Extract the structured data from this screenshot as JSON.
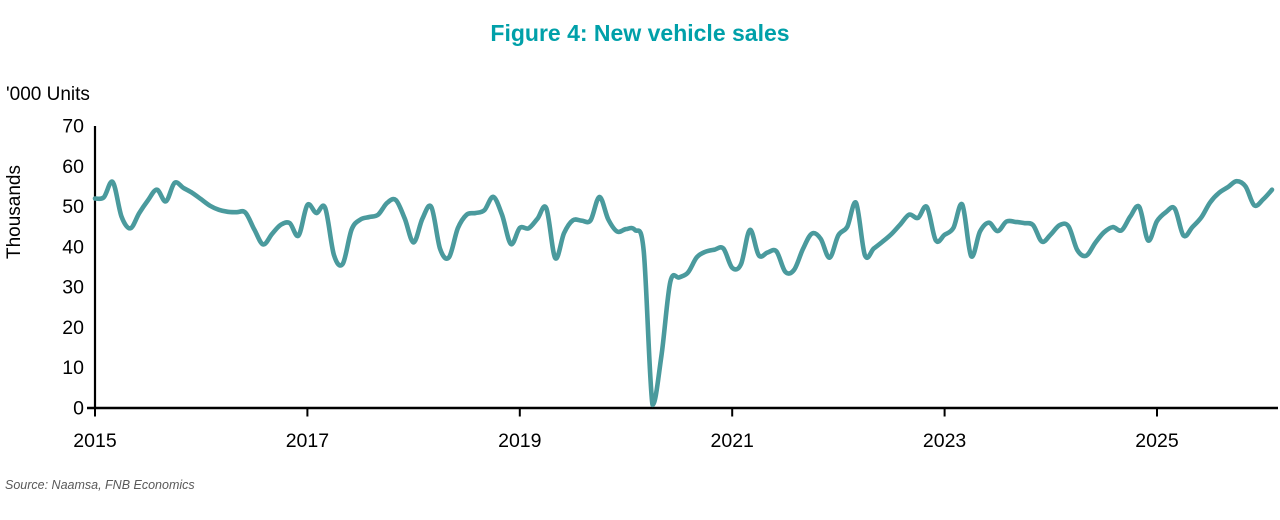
{
  "title": "Figure 4: New vehicle sales",
  "units_label": "'000 Units",
  "y_axis_label": "Thousands",
  "source": "Source: Naamsa, FNB Economics",
  "colors": {
    "title": "#00A0A9",
    "line": "#4A9A9D",
    "axis": "#000000",
    "source_text": "#595959"
  },
  "chart_data": {
    "type": "line",
    "title": "Figure 4: New vehicle sales",
    "ylabel": "Thousands",
    "units": "'000 Units",
    "frequency": "monthly",
    "start_year": 2015,
    "start_month": 1,
    "x_tick_labels": [
      "2015",
      "2017",
      "2019",
      "2021",
      "2023",
      "2025"
    ],
    "x_tick_years": [
      2015,
      2017,
      2019,
      2021,
      2023,
      2025
    ],
    "y_ticks": [
      0,
      10,
      20,
      30,
      40,
      50,
      60,
      70
    ],
    "ylim": [
      0,
      70
    ],
    "grid": false,
    "legend": false,
    "series": [
      {
        "name": "New vehicle sales ('000 units)",
        "values": [
          52.0,
          52.3,
          56.1,
          47.5,
          44.6,
          48.4,
          51.6,
          54.2,
          51.3,
          55.9,
          54.6,
          53.4,
          51.8,
          50.2,
          49.2,
          48.7,
          48.6,
          48.5,
          44.3,
          40.6,
          43.2,
          45.5,
          45.9,
          42.8,
          50.4,
          48.4,
          49.7,
          38.0,
          35.8,
          44.3,
          46.8,
          47.4,
          48.0,
          50.9,
          51.6,
          47.0,
          41.1,
          47.0,
          49.9,
          39.5,
          37.4,
          44.6,
          48.0,
          48.4,
          49.1,
          52.4,
          47.9,
          40.7,
          44.7,
          44.6,
          47.0,
          49.6,
          37.2,
          43.4,
          46.6,
          46.5,
          46.6,
          52.4,
          46.8,
          43.8,
          44.4,
          44.2,
          39.0,
          0.8,
          12.9,
          31.3,
          32.4,
          33.6,
          37.4,
          38.8,
          39.3,
          39.6,
          34.8,
          35.7,
          44.2,
          37.9,
          38.6,
          38.9,
          33.8,
          34.3,
          39.5,
          43.3,
          42.0,
          37.3,
          42.9,
          45.0,
          50.9,
          37.9,
          39.6,
          41.3,
          43.2,
          45.6,
          48.0,
          47.2,
          49.9,
          41.6,
          43.0,
          44.7,
          50.5,
          37.7,
          43.8,
          46.0,
          43.9,
          46.3,
          46.2,
          45.9,
          45.4,
          41.3,
          43.1,
          45.4,
          45.1,
          39.2,
          37.8,
          40.9,
          43.6,
          44.9,
          44.1,
          47.6,
          49.9,
          41.6,
          46.4,
          48.6,
          49.5,
          42.8,
          44.9,
          47.3,
          51.0,
          53.4,
          54.8,
          56.3,
          55.0,
          50.3,
          51.8,
          54.2
        ]
      }
    ]
  }
}
